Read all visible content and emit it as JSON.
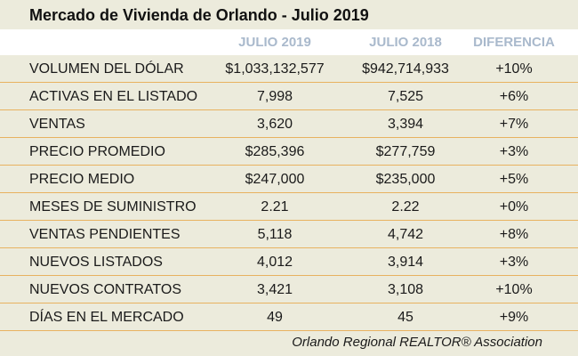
{
  "title": "Mercado de Vivienda de Orlando - Julio 2019",
  "columns": [
    "JULIO 2019",
    "JULIO 2018",
    "DIFERENCIA"
  ],
  "rows": [
    {
      "label": "VOLUMEN DEL DÓLAR",
      "a": "$1,033,132,577",
      "b": "$942,714,933",
      "d": "+10%"
    },
    {
      "label": "ACTIVAS EN EL LISTADO",
      "a": "7,998",
      "b": "7,525",
      "d": "+6%"
    },
    {
      "label": "VENTAS",
      "a": "3,620",
      "b": "3,394",
      "d": "+7%"
    },
    {
      "label": "PRECIO PROMEDIO",
      "a": "$285,396",
      "b": "$277,759",
      "d": "+3%"
    },
    {
      "label": "PRECIO MEDIO",
      "a": "$247,000",
      "b": "$235,000",
      "d": "+5%"
    },
    {
      "label": "MESES DE SUMINISTRO",
      "a": "2.21",
      "b": "2.22",
      "d": "+0%"
    },
    {
      "label": "VENTAS PENDIENTES",
      "a": "5,118",
      "b": "4,742",
      "d": "+8%"
    },
    {
      "label": "NUEVOS LISTADOS",
      "a": "4,012",
      "b": "3,914",
      "d": "+3%"
    },
    {
      "label": "NUEVOS CONTRATOS",
      "a": "3,421",
      "b": "3,108",
      "d": "+10%"
    },
    {
      "label": "DÍAS EN EL MERCADO",
      "a": "49",
      "b": "45",
      "d": "+9%"
    }
  ],
  "footer": "Orlando Regional REALTOR® Association",
  "colors": {
    "background": "#ecebdc",
    "header_text": "#a9b9cc",
    "row_divider": "#e8b260"
  }
}
